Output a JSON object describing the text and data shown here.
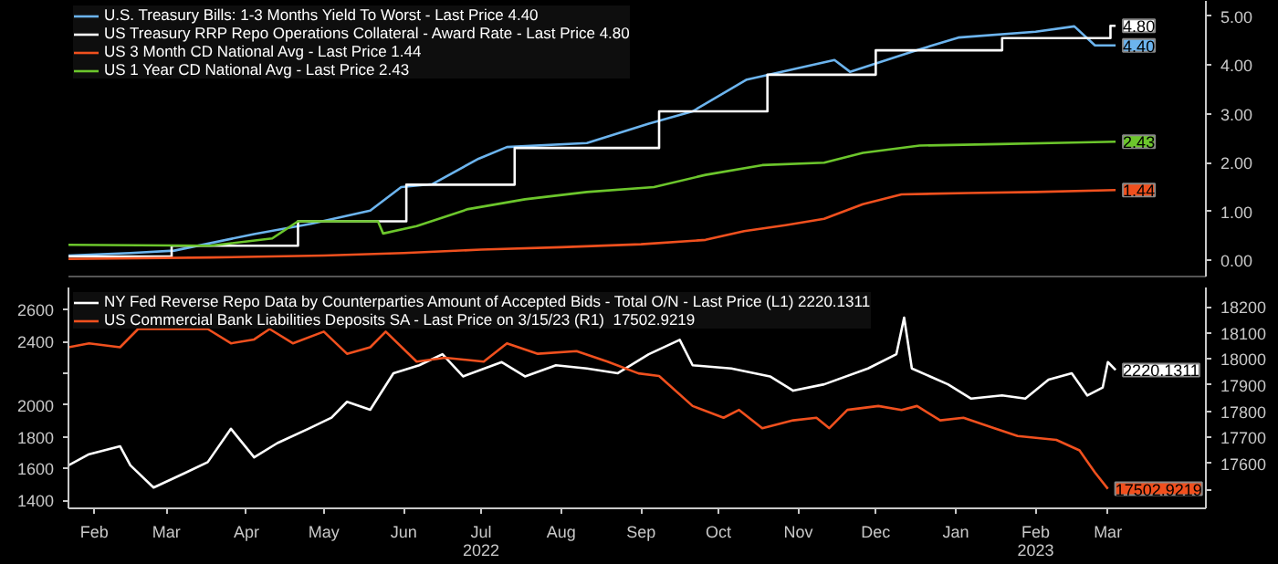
{
  "chart_data": [
    {
      "type": "line",
      "xlim": [
        "2022-02-05",
        "2023-04-22"
      ],
      "ylim": [
        -0.33,
        5.31
      ],
      "yticks": [
        {
          "value": 0,
          "label": "0.00"
        },
        {
          "value": 1,
          "label": "1.00"
        },
        {
          "value": 2,
          "label": "2.00"
        },
        {
          "value": 3,
          "label": "3.00"
        },
        {
          "value": 4,
          "label": "4.00"
        },
        {
          "value": 5,
          "label": "5.00"
        }
      ],
      "tick_labels": "y",
      "legend": "top left",
      "series": [
        {
          "name": "U.S. Treasury Bills: 1-3 Months Yield To Worst - Last Price 4.40",
          "color": "#6cb4ee",
          "x": [
            "2022-02-05",
            "2022-03-01",
            "2022-03-18",
            "2022-04-18",
            "2022-05-10",
            "2022-06-02",
            "2022-06-14",
            "2022-06-26",
            "2022-07-14",
            "2022-07-25",
            "2022-08-25",
            "2022-09-18",
            "2022-10-05",
            "2022-10-26",
            "2022-11-29",
            "2022-12-05",
            "2022-12-29",
            "2023-01-16",
            "2023-02-15",
            "2023-03-02",
            "2023-03-10",
            "2023-03-18"
          ],
          "values": [
            0.1,
            0.15,
            0.2,
            0.54,
            0.75,
            1.02,
            1.5,
            1.56,
            2.08,
            2.32,
            2.4,
            2.8,
            3.05,
            3.7,
            4.1,
            3.86,
            4.27,
            4.56,
            4.68,
            4.79,
            4.4,
            4.4
          ],
          "value_labels": [
            null,
            null,
            null,
            null,
            null,
            null,
            null,
            null,
            null,
            null,
            null,
            null,
            null,
            null,
            null,
            null,
            null,
            null,
            null,
            null,
            null,
            "4.40"
          ]
        },
        {
          "name": "US Treasury RRP Repo Operations Collateral - Award Rate - Last Price 4.80",
          "color": "#ffffff",
          "type": "step",
          "x": [
            "2022-02-05",
            "2022-03-17",
            "2022-05-05",
            "2022-06-16",
            "2022-07-28",
            "2022-09-22",
            "2022-11-03",
            "2022-12-15",
            "2023-02-02",
            "2023-03-16",
            "2023-03-18"
          ],
          "values": [
            0.08,
            0.3,
            0.8,
            1.55,
            2.3,
            3.05,
            3.8,
            4.3,
            4.55,
            4.8,
            4.8
          ],
          "value_labels": [
            null,
            null,
            null,
            null,
            null,
            null,
            null,
            null,
            null,
            null,
            "4.80"
          ]
        },
        {
          "name": "US 3 Month CD National Avg - Last Price 1.44",
          "color": "#f0501e",
          "x": [
            "2022-02-05",
            "2022-04-01",
            "2022-05-15",
            "2022-06-15",
            "2022-07-15",
            "2022-08-15",
            "2022-09-15",
            "2022-10-10",
            "2022-10-25",
            "2022-11-10",
            "2022-11-25",
            "2022-12-10",
            "2022-12-25",
            "2023-01-20",
            "2023-02-15",
            "2023-03-18"
          ],
          "values": [
            0.03,
            0.06,
            0.1,
            0.15,
            0.22,
            0.27,
            0.33,
            0.42,
            0.6,
            0.72,
            0.85,
            1.15,
            1.35,
            1.38,
            1.4,
            1.44
          ],
          "value_labels": [
            null,
            null,
            null,
            null,
            null,
            null,
            null,
            null,
            null,
            null,
            null,
            null,
            null,
            null,
            null,
            "1.44"
          ]
        },
        {
          "name": "US 1 Year CD National Avg - Last Price 2.43",
          "color": "#6cc62c",
          "x": [
            "2022-02-05",
            "2022-04-01",
            "2022-04-25",
            "2022-05-05",
            "2022-06-05",
            "2022-06-07",
            "2022-06-20",
            "2022-07-10",
            "2022-08-01",
            "2022-08-25",
            "2022-09-20",
            "2022-10-10",
            "2022-11-01",
            "2022-11-25",
            "2022-12-10",
            "2023-01-01",
            "2023-02-01",
            "2023-03-01",
            "2023-03-18"
          ],
          "values": [
            0.32,
            0.3,
            0.45,
            0.8,
            0.8,
            0.55,
            0.7,
            1.05,
            1.25,
            1.4,
            1.5,
            1.75,
            1.95,
            2.0,
            2.2,
            2.35,
            2.38,
            2.41,
            2.43
          ],
          "value_labels": [
            null,
            null,
            null,
            null,
            null,
            null,
            null,
            null,
            null,
            null,
            null,
            null,
            null,
            null,
            null,
            null,
            null,
            null,
            "2.43"
          ]
        }
      ]
    },
    {
      "type": "line",
      "xlim": [
        "2022-02-05",
        "2023-04-22"
      ],
      "ylim": [
        1349,
        2740
      ],
      "y2lim": [
        17428,
        18274
      ],
      "xticks": [
        {
          "value": "2022-02-15",
          "label": "Feb"
        },
        {
          "value": "2022-03-15",
          "label": "Mar"
        },
        {
          "value": "2022-04-15",
          "label": "Apr"
        },
        {
          "value": "2022-05-15",
          "label": "May"
        },
        {
          "value": "2022-06-15",
          "label": "Jun"
        },
        {
          "value": "2022-07-15",
          "label": "Jul\n2022"
        },
        {
          "value": "2022-08-15",
          "label": "Aug"
        },
        {
          "value": "2022-09-15",
          "label": "Sep"
        },
        {
          "value": "2022-10-15",
          "label": "Oct"
        },
        {
          "value": "2022-11-15",
          "label": "Nov"
        },
        {
          "value": "2022-12-15",
          "label": "Dec"
        },
        {
          "value": "2023-01-15",
          "label": "Jan"
        },
        {
          "value": "2023-02-15",
          "label": "Feb\n2023"
        },
        {
          "value": "2023-03-15",
          "label": "Mar"
        }
      ],
      "yticks": [
        1400,
        1600,
        1800,
        2000,
        {
          "value": 2200,
          "label": null
        },
        2400,
        2600
      ],
      "y2ticks": [
        {
          "value": 17500,
          "label": null
        },
        17600,
        17700,
        17800,
        17900,
        18000,
        18100,
        18200
      ],
      "legend": "top left",
      "series": [
        {
          "name": "NY Fed Reverse Repo Data by Counterparties Amount of Accepted Bids - Total O/N - Last Price (L1) 2220.1311",
          "color": "#ffffff",
          "x": [
            "2022-02-05",
            "2022-02-13",
            "2022-02-25",
            "2022-03-01",
            "2022-03-10",
            "2022-03-22",
            "2022-03-31",
            "2022-04-09",
            "2022-04-18",
            "2022-04-27",
            "2022-05-09",
            "2022-05-18",
            "2022-05-24",
            "2022-06-02",
            "2022-06-11",
            "2022-06-21",
            "2022-06-30",
            "2022-07-08",
            "2022-07-23",
            "2022-08-01",
            "2022-08-13",
            "2022-08-25",
            "2022-09-06",
            "2022-09-18",
            "2022-09-30",
            "2022-10-05",
            "2022-10-20",
            "2022-11-04",
            "2022-11-13",
            "2022-11-25",
            "2022-12-12",
            "2022-12-23",
            "2022-12-26",
            "2022-12-29",
            "2023-01-12",
            "2023-01-21",
            "2023-02-02",
            "2023-02-11",
            "2023-02-20",
            "2023-03-01",
            "2023-03-07",
            "2023-03-13",
            "2023-03-15",
            "2023-03-18"
          ],
          "values": [
            1620,
            1690,
            1740,
            1620,
            1480,
            1570,
            1640,
            1850,
            1670,
            1760,
            1850,
            1920,
            2020,
            1970,
            2200,
            2250,
            2320,
            2180,
            2270,
            2180,
            2250,
            2230,
            2200,
            2320,
            2410,
            2250,
            2230,
            2180,
            2090,
            2130,
            2230,
            2320,
            2550,
            2230,
            2130,
            2040,
            2060,
            2040,
            2160,
            2200,
            2060,
            2110,
            2270,
            2220.1311
          ],
          "value_labels": [
            null,
            null,
            null,
            null,
            null,
            null,
            null,
            null,
            null,
            null,
            null,
            null,
            null,
            null,
            null,
            null,
            null,
            null,
            null,
            null,
            null,
            null,
            null,
            null,
            null,
            null,
            null,
            null,
            null,
            null,
            null,
            null,
            null,
            null,
            null,
            null,
            null,
            null,
            null,
            null,
            null,
            null,
            null,
            "2220.1311"
          ]
        },
        {
          "name": "US Commercial Bank Liabilities Deposits SA - Last Price on 3/15/23 (R1)  17502.9219",
          "color": "#f0501e",
          "axis": "y2",
          "x": [
            "2022-02-05",
            "2022-02-13",
            "2022-02-25",
            "2022-03-04",
            "2022-03-31",
            "2022-04-09",
            "2022-04-18",
            "2022-04-24",
            "2022-05-03",
            "2022-05-15",
            "2022-05-24",
            "2022-06-02",
            "2022-06-08",
            "2022-06-20",
            "2022-07-01",
            "2022-07-16",
            "2022-07-25",
            "2022-08-06",
            "2022-08-21",
            "2022-09-02",
            "2022-09-14",
            "2022-09-22",
            "2022-10-05",
            "2022-10-17",
            "2022-10-23",
            "2022-11-01",
            "2022-11-13",
            "2022-11-22",
            "2022-11-27",
            "2022-12-04",
            "2022-12-16",
            "2022-12-25",
            "2022-12-31",
            "2023-01-09",
            "2023-01-18",
            "2023-01-30",
            "2023-02-08",
            "2023-02-23",
            "2023-03-04",
            "2023-03-10",
            "2023-03-15"
          ],
          "values": [
            18045,
            18060,
            18045,
            18115,
            18115,
            18060,
            18075,
            18115,
            18060,
            18105,
            18020,
            18045,
            18105,
            17990,
            18005,
            17990,
            18060,
            18020,
            18030,
            17990,
            17945,
            17935,
            17820,
            17775,
            17805,
            17735,
            17765,
            17775,
            17735,
            17805,
            17820,
            17805,
            17820,
            17765,
            17775,
            17735,
            17705,
            17690,
            17650,
            17565,
            17502.9219
          ],
          "value_labels": [
            null,
            null,
            null,
            null,
            null,
            null,
            null,
            null,
            null,
            null,
            null,
            null,
            null,
            null,
            null,
            null,
            null,
            null,
            null,
            null,
            null,
            null,
            null,
            null,
            null,
            null,
            null,
            null,
            null,
            null,
            null,
            null,
            null,
            null,
            null,
            null,
            null,
            null,
            null,
            null,
            "17502.9219"
          ]
        }
      ]
    }
  ]
}
